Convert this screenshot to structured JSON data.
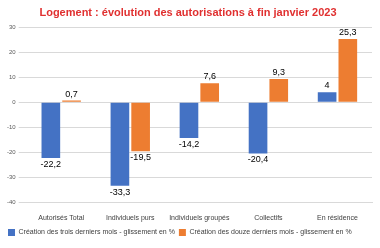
{
  "chart_data": {
    "type": "bar",
    "title": "Logement : évolution des autorisations à fin janvier 2023",
    "categories": [
      "Autorisés Total",
      "Individuels purs",
      "Individuels groupés",
      "Collectifs",
      "En résidence"
    ],
    "series": [
      {
        "name": "Création des trois derniers mois - glissement en %",
        "color": "#4472c4",
        "values": [
          -22.2,
          -33.3,
          -14.2,
          -20.4,
          4
        ],
        "value_labels": [
          "-22,2",
          "-33,3",
          "-14,2",
          "-20,4",
          "4"
        ]
      },
      {
        "name": "Création des douze derniers mois - glissement en %",
        "color": "#ed7d31",
        "values": [
          0.7,
          -19.5,
          7.6,
          9.3,
          25.3
        ],
        "value_labels": [
          "0,7",
          "-19,5",
          "7,6",
          "9,3",
          "25,3"
        ]
      }
    ],
    "ylim": [
      -40,
      30
    ],
    "yticks": [
      -40,
      -30,
      -20,
      -10,
      0,
      10,
      20,
      30
    ],
    "grid": true,
    "legend": "bottom",
    "data_labels": true
  }
}
